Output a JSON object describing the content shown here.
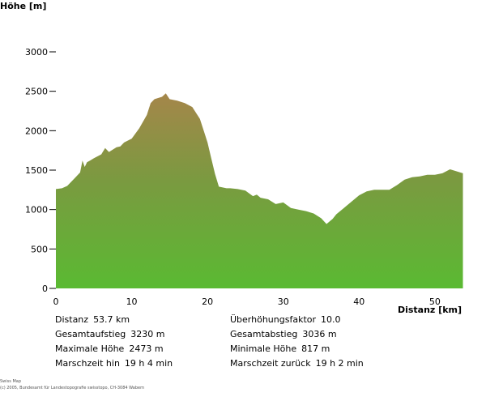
{
  "chart_data": {
    "type": "area",
    "ylabel": "Höhe [m]",
    "xlabel": "Distanz [km]",
    "xlim": [
      0,
      54.5
    ],
    "ylim": [
      0,
      3000
    ],
    "xticks": [
      0,
      10,
      20,
      30,
      40,
      50
    ],
    "yticks": [
      0,
      500,
      1000,
      1500,
      2000,
      2500,
      3000
    ],
    "grid": false,
    "colors": {
      "top": "#a5864a",
      "mid": "#7a9a40",
      "bottom": "#5aba32"
    },
    "x": [
      0,
      0.8,
      1.5,
      2.5,
      3.2,
      3.5,
      3.8,
      4.1,
      4.5,
      5.0,
      6.0,
      6.5,
      7.0,
      8.0,
      8.5,
      9.0,
      10.0,
      11.0,
      12.0,
      12.5,
      13.0,
      14.0,
      14.5,
      15.0,
      16.0,
      17.0,
      18.0,
      19.0,
      19.5,
      20.0,
      20.5,
      21.0,
      21.5,
      22.0,
      22.5,
      23.0,
      24.0,
      25.0,
      26.0,
      26.5,
      27.0,
      28.0,
      29.0,
      30.0,
      31.0,
      32.0,
      33.0,
      34.0,
      35.0,
      35.7,
      36.5,
      37.0,
      38.0,
      39.0,
      40.0,
      41.0,
      42.0,
      43.0,
      44.0,
      45.0,
      46.0,
      47.0,
      48.0,
      49.0,
      50.0,
      51.0,
      52.0,
      53.0,
      53.7
    ],
    "y": [
      1260,
      1270,
      1300,
      1400,
      1470,
      1620,
      1540,
      1600,
      1620,
      1650,
      1700,
      1780,
      1730,
      1790,
      1800,
      1850,
      1900,
      2030,
      2200,
      2350,
      2400,
      2430,
      2473,
      2400,
      2380,
      2350,
      2300,
      2150,
      2000,
      1850,
      1650,
      1450,
      1290,
      1280,
      1270,
      1270,
      1260,
      1240,
      1170,
      1190,
      1150,
      1130,
      1070,
      1090,
      1020,
      1000,
      980,
      950,
      890,
      817,
      880,
      940,
      1020,
      1100,
      1180,
      1230,
      1250,
      1250,
      1250,
      1310,
      1380,
      1410,
      1420,
      1440,
      1440,
      1460,
      1510,
      1480,
      1460
    ]
  },
  "stats": {
    "distance": {
      "label": "Distanz",
      "value": "53.7 km"
    },
    "exaggeration": {
      "label": "Überhöhungsfaktor",
      "value": "10.0"
    },
    "ascent": {
      "label": "Gesamtaufstieg",
      "value": "3230 m"
    },
    "descent": {
      "label": "Gesamtabstieg",
      "value": "3036 m"
    },
    "max_height": {
      "label": "Maximale Höhe",
      "value": "2473 m"
    },
    "min_height": {
      "label": "Minimale Höhe",
      "value": "817 m"
    },
    "time_forward": {
      "label": "Marschzeit hin",
      "value": "19 h 4 min"
    },
    "time_back": {
      "label": "Marschzeit zurück",
      "value": "19 h 2 min"
    }
  },
  "credit": {
    "line1": "Swiss Map",
    "line2": "(c) 2005, Bundesamt für Landestopografie swisstopo, CH-3084 Wabern"
  }
}
